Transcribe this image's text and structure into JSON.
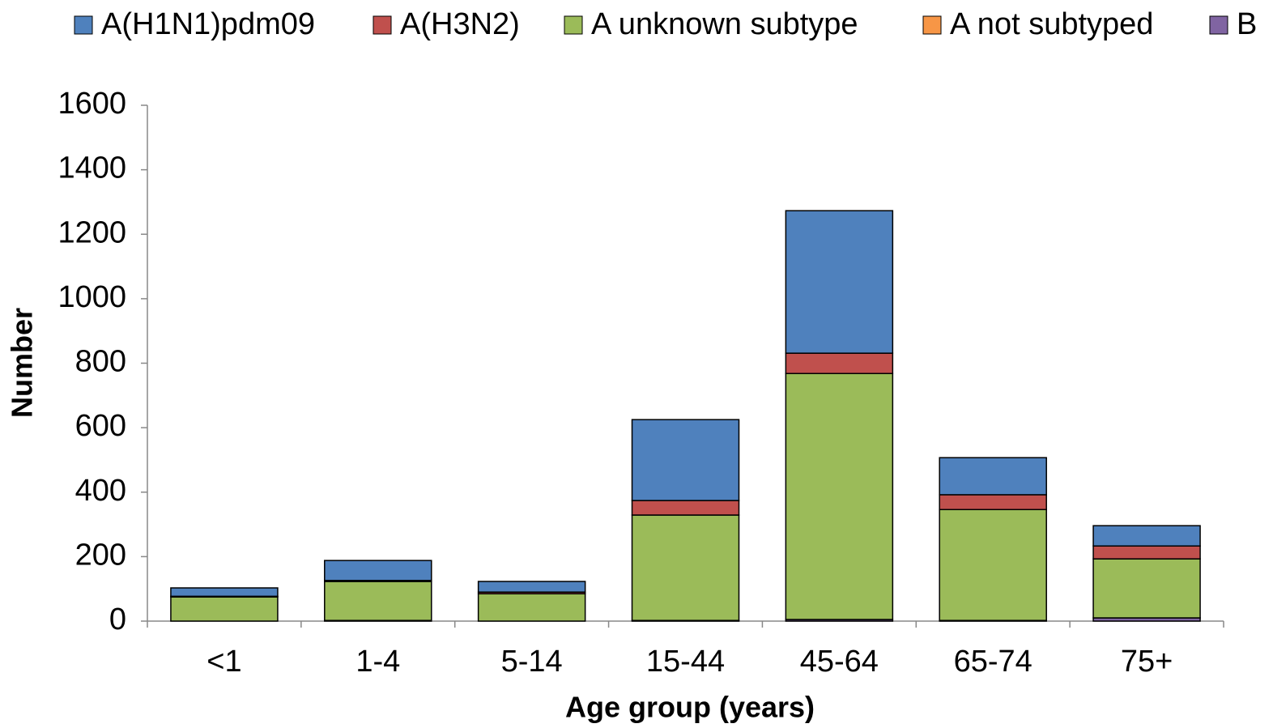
{
  "chart_data": {
    "type": "stacked_bar",
    "x_label": "Age group (years)",
    "y_label": "Number",
    "categories": [
      "<1",
      "1-4",
      "5-14",
      "15-44",
      "45-64",
      "65-74",
      "75+"
    ],
    "series": [
      {
        "name": "A(H1N1)pdm09",
        "color": "#4f81bd",
        "values": [
          26,
          62,
          33,
          251,
          442,
          115,
          63
        ]
      },
      {
        "name": "A(H3N2)",
        "color": "#c0504d",
        "values": [
          2,
          3,
          5,
          45,
          63,
          46,
          40
        ]
      },
      {
        "name": "A unknown subtype",
        "color": "#9bbb59",
        "values": [
          75,
          121,
          85,
          327,
          763,
          344,
          183
        ]
      },
      {
        "name": "A not subtyped",
        "color": "#f79646",
        "values": [
          0,
          0,
          0,
          0,
          0,
          0,
          0
        ]
      },
      {
        "name": "B",
        "color": "#8064a2",
        "values": [
          0,
          2,
          0,
          2,
          5,
          2,
          10
        ]
      }
    ],
    "ylim": [
      0,
      1600
    ],
    "yticks": [
      0,
      200,
      400,
      600,
      800,
      1000,
      1200,
      1400,
      1600
    ]
  }
}
